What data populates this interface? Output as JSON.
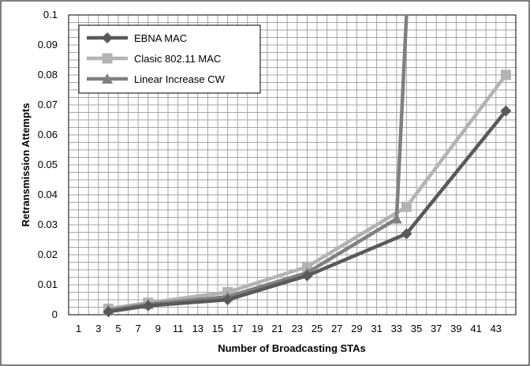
{
  "chart_data": {
    "type": "line",
    "title": "",
    "xlabel": "Number of Broadcasting STAs",
    "ylabel": "Retransmission Attempts",
    "x_ticks": [
      "1",
      "3",
      "5",
      "7",
      "9",
      "11",
      "13",
      "15",
      "17",
      "19",
      "21",
      "23",
      "25",
      "27",
      "29",
      "31",
      "33",
      "35",
      "37",
      "39",
      "41",
      "43"
    ],
    "y_ticks": [
      "0",
      "0.01",
      "0.02",
      "0.03",
      "0.04",
      "0.05",
      "0.06",
      "0.07",
      "0.08",
      "0.09",
      "0.1"
    ],
    "xlim": [
      0,
      45
    ],
    "ylim": [
      0,
      0.1
    ],
    "grid": true,
    "legend_position": "top-left",
    "series": [
      {
        "name": "EBNA MAC",
        "color": "#595959",
        "marker": "diamond",
        "points": [
          [
            4,
            0.001
          ],
          [
            8,
            0.003
          ],
          [
            16,
            0.005
          ],
          [
            24,
            0.013
          ],
          [
            34,
            0.027
          ],
          [
            44,
            0.068
          ]
        ]
      },
      {
        "name": "Clasic 802.11 MAC",
        "color": "#b3b3b3",
        "marker": "square",
        "points": [
          [
            4,
            0.002
          ],
          [
            8,
            0.004
          ],
          [
            16,
            0.0075
          ],
          [
            24,
            0.016
          ],
          [
            34,
            0.036
          ],
          [
            44,
            0.08
          ]
        ]
      },
      {
        "name": "Linear Increase CW",
        "color": "#808080",
        "marker": "triangle",
        "points": [
          [
            4,
            0.0015
          ],
          [
            8,
            0.0035
          ],
          [
            16,
            0.006
          ],
          [
            24,
            0.014
          ],
          [
            33,
            0.032
          ],
          [
            34,
            0.1
          ]
        ]
      }
    ]
  }
}
